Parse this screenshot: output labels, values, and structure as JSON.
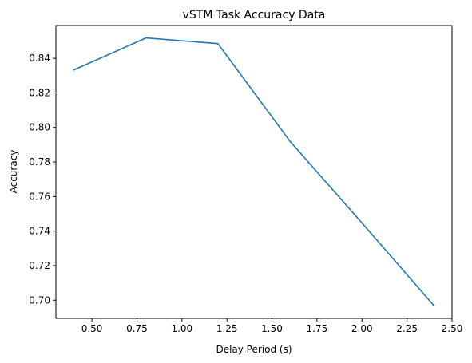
{
  "chart_data": {
    "type": "line",
    "title": "vSTM Task Accuracy Data",
    "xlabel": "Delay Period (s)",
    "ylabel": "Accuracy",
    "x": [
      0.4,
      0.8,
      1.2,
      1.6,
      2.0,
      2.4
    ],
    "series": [
      {
        "values": [
          0.8333,
          0.8518,
          0.8485,
          0.792,
          0.7447,
          0.6968
        ],
        "color": "#1f77b4"
      }
    ],
    "xlim": [
      0.3,
      2.5
    ],
    "ylim": [
      0.6895,
      0.859
    ],
    "xticks": [
      "0.50",
      "0.75",
      "1.00",
      "1.25",
      "1.50",
      "1.75",
      "2.00",
      "2.25",
      "2.50"
    ],
    "yticks": [
      "0.70",
      "0.72",
      "0.74",
      "0.76",
      "0.78",
      "0.80",
      "0.82",
      "0.84"
    ],
    "grid": false,
    "legend": "none"
  }
}
